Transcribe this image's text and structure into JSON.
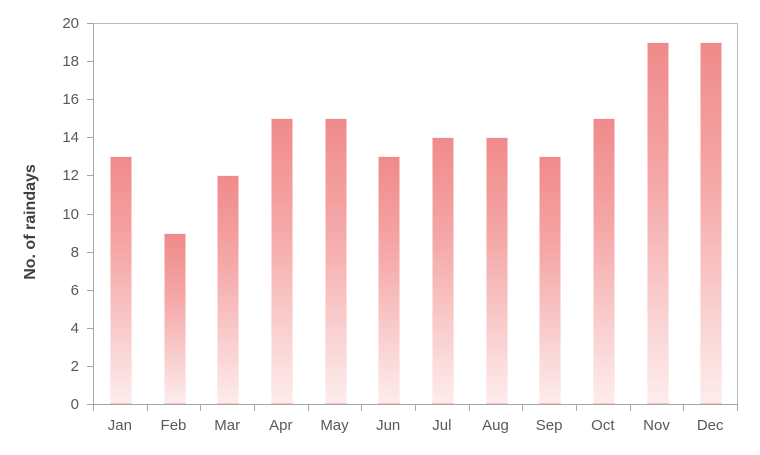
{
  "chart_data": {
    "type": "bar",
    "title": "",
    "xlabel": "",
    "ylabel": "No. of raindays",
    "categories": [
      "Jan",
      "Feb",
      "Mar",
      "Apr",
      "May",
      "Jun",
      "Jul",
      "Aug",
      "Sep",
      "Oct",
      "Nov",
      "Dec"
    ],
    "values": [
      13,
      9,
      12,
      15,
      15,
      13,
      14,
      14,
      13,
      15,
      19,
      19
    ],
    "ylim": [
      0,
      20
    ],
    "yticks": [
      0,
      2,
      4,
      6,
      8,
      10,
      12,
      14,
      16,
      18,
      20
    ],
    "grid": false,
    "legend": "none",
    "colors": {
      "bar_gradient_top": "#f08a8a",
      "bar_gradient_bottom": "#fdecec",
      "axis_line": "#a6a6a6",
      "plot_border": "#bdbdbd",
      "tick_label": "#595959",
      "axis_title": "#404040",
      "background": "#ffffff"
    }
  }
}
